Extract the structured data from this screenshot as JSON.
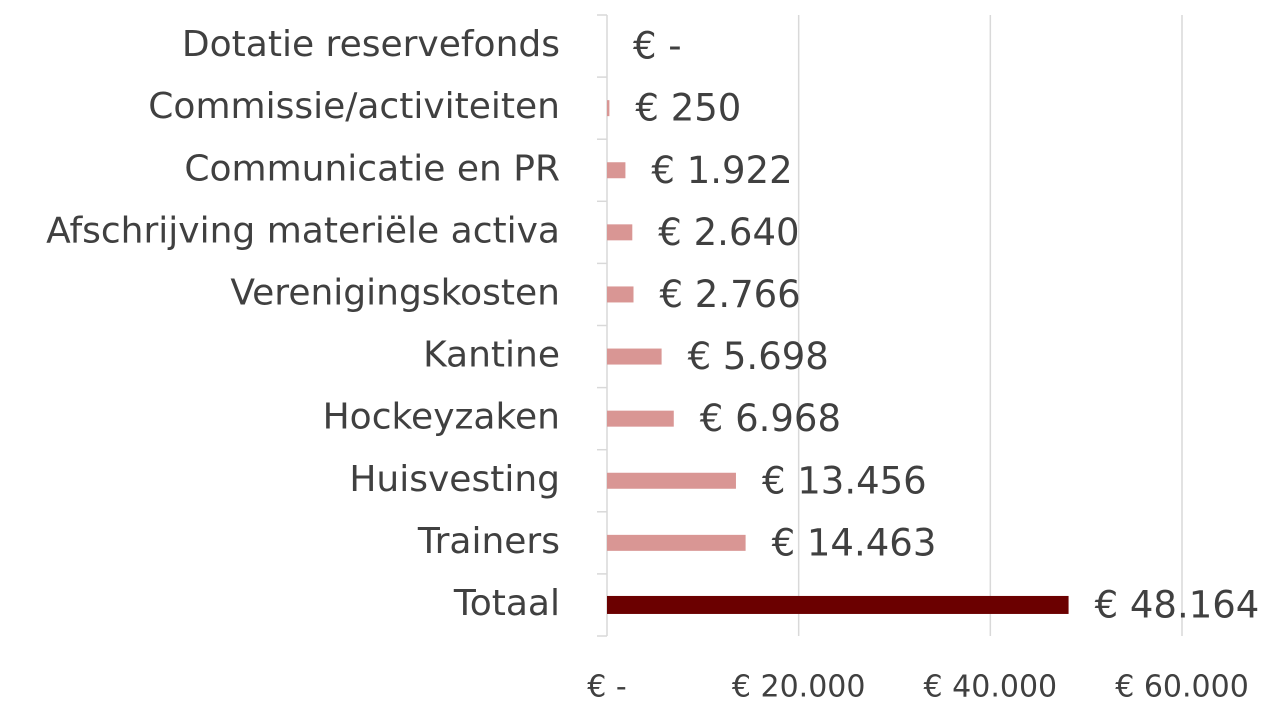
{
  "chart_data": {
    "type": "barh",
    "categories": [
      "Dotatie reservefonds",
      "Commissie/activiteiten",
      "Communicatie en PR",
      "Afschrijving materiële activa",
      "Verenigingskosten",
      "Kantine",
      "Hockeyzaken",
      "Huisvesting",
      "Trainers",
      "Totaal"
    ],
    "values": [
      0,
      250,
      1922,
      2640,
      2766,
      5698,
      6968,
      13456,
      14463,
      48164
    ],
    "value_labels": [
      "€ -",
      "€ 250",
      "€ 1.922",
      "€ 2.640",
      "€ 2.766",
      "€ 5.698",
      "€ 6.968",
      "€ 13.456",
      "€ 14.463",
      "€ 48.164"
    ],
    "colors": [
      "#d99694",
      "#d99694",
      "#d99694",
      "#d99694",
      "#d99694",
      "#d99694",
      "#d99694",
      "#d99694",
      "#d99694",
      "#6b0000"
    ],
    "xlim": [
      0,
      60000
    ],
    "xticks": [
      {
        "value": 0,
        "label": "€ -"
      },
      {
        "value": 20000,
        "label": "€ 20.000"
      },
      {
        "value": 40000,
        "label": "€ 40.000"
      },
      {
        "value": 60000,
        "label": "€ 60.000"
      }
    ],
    "grid": true
  }
}
